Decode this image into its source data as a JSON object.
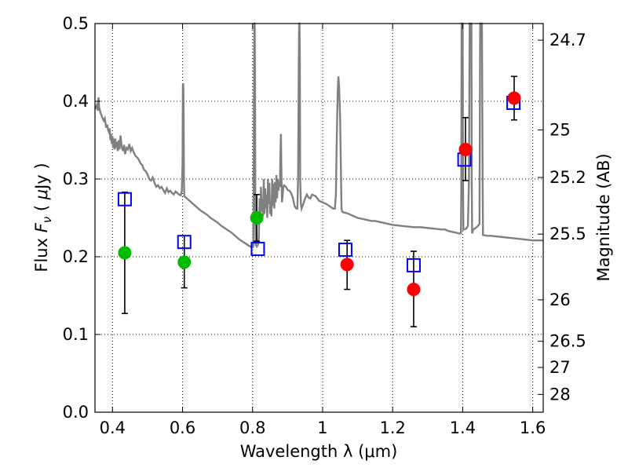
{
  "chart_data": {
    "type": "scatter",
    "xlabel": "Wavelength  λ (μm)",
    "ylabel": "Flux  F_ν  ( μJy )",
    "ylabel_parts": {
      "pre": "Flux  ",
      "sym": "F",
      "sub": "ν",
      "post": "  ( ",
      "mu": "μ",
      "unit": "Jy )"
    },
    "y2label": "Magnitude (AB)",
    "xlim": [
      0.35,
      1.63
    ],
    "ylim": [
      0.0,
      0.5
    ],
    "grid": true,
    "x_ticks": [
      {
        "value": 0.4,
        "label": "0.4"
      },
      {
        "value": 0.6,
        "label": "0.6"
      },
      {
        "value": 0.8,
        "label": "0.8"
      },
      {
        "value": 1.0,
        "label": "1"
      },
      {
        "value": 1.2,
        "label": "1.2"
      },
      {
        "value": 1.4,
        "label": "1.4"
      },
      {
        "value": 1.6,
        "label": "1.6"
      }
    ],
    "y_ticks": [
      {
        "value": 0.0,
        "label": "0.0"
      },
      {
        "value": 0.1,
        "label": "0.1"
      },
      {
        "value": 0.2,
        "label": "0.2"
      },
      {
        "value": 0.3,
        "label": "0.3"
      },
      {
        "value": 0.4,
        "label": "0.4"
      },
      {
        "value": 0.5,
        "label": "0.5"
      }
    ],
    "y2_ticks": [
      {
        "value": 24.7,
        "label": "24.7"
      },
      {
        "value": 25.0,
        "label": "25"
      },
      {
        "value": 25.2,
        "label": "25.2"
      },
      {
        "value": 25.5,
        "label": "25.5"
      },
      {
        "value": 26.0,
        "label": "26"
      },
      {
        "value": 26.5,
        "label": "26.5"
      },
      {
        "value": 27.0,
        "label": "27"
      },
      {
        "value": 28.0,
        "label": "28"
      }
    ],
    "model_spectrum": {
      "color": "#808080",
      "points": [
        [
          0.35,
          0.39
        ],
        [
          0.355,
          0.395
        ],
        [
          0.358,
          0.388
        ],
        [
          0.36,
          0.405
        ],
        [
          0.362,
          0.392
        ],
        [
          0.366,
          0.385
        ],
        [
          0.37,
          0.38
        ],
        [
          0.375,
          0.375
        ],
        [
          0.378,
          0.378
        ],
        [
          0.382,
          0.366
        ],
        [
          0.385,
          0.37
        ],
        [
          0.388,
          0.362
        ],
        [
          0.39,
          0.36
        ],
        [
          0.392,
          0.365
        ],
        [
          0.394,
          0.35
        ],
        [
          0.396,
          0.358
        ],
        [
          0.398,
          0.345
        ],
        [
          0.4,
          0.355
        ],
        [
          0.402,
          0.34
        ],
        [
          0.404,
          0.352
        ],
        [
          0.406,
          0.338
        ],
        [
          0.408,
          0.352
        ],
        [
          0.41,
          0.34
        ],
        [
          0.412,
          0.348
        ],
        [
          0.415,
          0.336
        ],
        [
          0.418,
          0.35
        ],
        [
          0.42,
          0.338
        ],
        [
          0.423,
          0.356
        ],
        [
          0.426,
          0.342
        ],
        [
          0.43,
          0.336
        ],
        [
          0.433,
          0.344
        ],
        [
          0.436,
          0.332
        ],
        [
          0.44,
          0.34
        ],
        [
          0.444,
          0.338
        ],
        [
          0.448,
          0.345
        ],
        [
          0.452,
          0.336
        ],
        [
          0.456,
          0.34
        ],
        [
          0.46,
          0.335
        ],
        [
          0.465,
          0.33
        ],
        [
          0.47,
          0.328
        ],
        [
          0.475,
          0.325
        ],
        [
          0.48,
          0.32
        ],
        [
          0.485,
          0.318
        ],
        [
          0.49,
          0.312
        ],
        [
          0.495,
          0.31
        ],
        [
          0.5,
          0.306
        ],
        [
          0.505,
          0.3
        ],
        [
          0.51,
          0.298
        ],
        [
          0.515,
          0.302
        ],
        [
          0.52,
          0.295
        ],
        [
          0.525,
          0.29
        ],
        [
          0.53,
          0.292
        ],
        [
          0.535,
          0.288
        ],
        [
          0.54,
          0.29
        ],
        [
          0.545,
          0.286
        ],
        [
          0.55,
          0.282
        ],
        [
          0.555,
          0.288
        ],
        [
          0.56,
          0.283
        ],
        [
          0.565,
          0.285
        ],
        [
          0.57,
          0.282
        ],
        [
          0.575,
          0.28
        ],
        [
          0.58,
          0.284
        ],
        [
          0.585,
          0.282
        ],
        [
          0.59,
          0.28
        ],
        [
          0.595,
          0.279
        ],
        [
          0.598,
          0.285
        ],
        [
          0.6,
          0.32
        ],
        [
          0.601,
          0.42
        ],
        [
          0.602,
          0.423
        ],
        [
          0.603,
          0.4
        ],
        [
          0.604,
          0.3
        ],
        [
          0.605,
          0.278
        ],
        [
          0.61,
          0.276
        ],
        [
          0.62,
          0.272
        ],
        [
          0.63,
          0.268
        ],
        [
          0.64,
          0.264
        ],
        [
          0.65,
          0.26
        ],
        [
          0.66,
          0.257
        ],
        [
          0.67,
          0.254
        ],
        [
          0.68,
          0.25
        ],
        [
          0.69,
          0.247
        ],
        [
          0.7,
          0.244
        ],
        [
          0.71,
          0.24
        ],
        [
          0.72,
          0.237
        ],
        [
          0.73,
          0.234
        ],
        [
          0.74,
          0.231
        ],
        [
          0.75,
          0.227
        ],
        [
          0.76,
          0.223
        ],
        [
          0.77,
          0.22
        ],
        [
          0.78,
          0.217
        ],
        [
          0.79,
          0.214
        ],
        [
          0.8,
          0.212
        ],
        [
          0.802,
          0.213
        ],
        [
          0.803,
          0.26
        ],
        [
          0.804,
          0.4
        ],
        [
          0.805,
          0.5
        ],
        [
          0.806,
          0.5
        ],
        [
          0.807,
          0.42
        ],
        [
          0.808,
          0.26
        ],
        [
          0.809,
          0.215
        ],
        [
          0.812,
          0.213
        ],
        [
          0.815,
          0.215
        ],
        [
          0.818,
          0.225
        ],
        [
          0.82,
          0.275
        ],
        [
          0.822,
          0.25
        ],
        [
          0.824,
          0.29
        ],
        [
          0.826,
          0.258
        ],
        [
          0.828,
          0.275
        ],
        [
          0.83,
          0.252
        ],
        [
          0.832,
          0.3
        ],
        [
          0.834,
          0.255
        ],
        [
          0.836,
          0.288
        ],
        [
          0.838,
          0.262
        ],
        [
          0.84,
          0.28
        ],
        [
          0.842,
          0.25
        ],
        [
          0.844,
          0.3
        ],
        [
          0.846,
          0.268
        ],
        [
          0.848,
          0.295
        ],
        [
          0.85,
          0.255
        ],
        [
          0.852,
          0.268
        ],
        [
          0.854,
          0.252
        ],
        [
          0.856,
          0.3
        ],
        [
          0.858,
          0.265
        ],
        [
          0.86,
          0.294
        ],
        [
          0.862,
          0.262
        ],
        [
          0.864,
          0.296
        ],
        [
          0.866,
          0.27
        ],
        [
          0.868,
          0.305
        ],
        [
          0.87,
          0.275
        ],
        [
          0.872,
          0.3
        ],
        [
          0.874,
          0.285
        ],
        [
          0.876,
          0.292
        ],
        [
          0.878,
          0.29
        ],
        [
          0.88,
          0.34
        ],
        [
          0.881,
          0.358
        ],
        [
          0.882,
          0.32
        ],
        [
          0.884,
          0.27
        ],
        [
          0.886,
          0.28
        ],
        [
          0.888,
          0.29
        ],
        [
          0.89,
          0.292
        ],
        [
          0.895,
          0.29
        ],
        [
          0.9,
          0.286
        ],
        [
          0.905,
          0.285
        ],
        [
          0.91,
          0.282
        ],
        [
          0.915,
          0.276
        ],
        [
          0.92,
          0.265
        ],
        [
          0.925,
          0.262
        ],
        [
          0.928,
          0.262
        ],
        [
          0.93,
          0.3
        ],
        [
          0.932,
          0.45
        ],
        [
          0.933,
          0.5
        ],
        [
          0.934,
          0.5
        ],
        [
          0.935,
          0.46
        ],
        [
          0.936,
          0.3
        ],
        [
          0.938,
          0.268
        ],
        [
          0.94,
          0.262
        ],
        [
          0.945,
          0.268
        ],
        [
          0.95,
          0.275
        ],
        [
          0.955,
          0.28
        ],
        [
          0.96,
          0.276
        ],
        [
          0.965,
          0.275
        ],
        [
          0.97,
          0.28
        ],
        [
          0.975,
          0.279
        ],
        [
          0.98,
          0.278
        ],
        [
          0.985,
          0.275
        ],
        [
          0.99,
          0.272
        ],
        [
          1.0,
          0.27
        ],
        [
          1.01,
          0.268
        ],
        [
          1.02,
          0.265
        ],
        [
          1.03,
          0.262
        ],
        [
          1.035,
          0.262
        ],
        [
          1.038,
          0.28
        ],
        [
          1.04,
          0.34
        ],
        [
          1.043,
          0.41
        ],
        [
          1.045,
          0.432
        ],
        [
          1.047,
          0.42
        ],
        [
          1.05,
          0.38
        ],
        [
          1.052,
          0.32
        ],
        [
          1.054,
          0.262
        ],
        [
          1.056,
          0.258
        ],
        [
          1.06,
          0.257
        ],
        [
          1.07,
          0.256
        ],
        [
          1.08,
          0.254
        ],
        [
          1.09,
          0.252
        ],
        [
          1.1,
          0.25
        ],
        [
          1.11,
          0.249
        ],
        [
          1.12,
          0.248
        ],
        [
          1.13,
          0.247
        ],
        [
          1.14,
          0.246
        ],
        [
          1.15,
          0.246
        ],
        [
          1.16,
          0.245
        ],
        [
          1.17,
          0.244
        ],
        [
          1.18,
          0.243
        ],
        [
          1.19,
          0.242
        ],
        [
          1.2,
          0.241
        ],
        [
          1.22,
          0.24
        ],
        [
          1.24,
          0.239
        ],
        [
          1.26,
          0.238
        ],
        [
          1.28,
          0.238
        ],
        [
          1.3,
          0.237
        ],
        [
          1.32,
          0.236
        ],
        [
          1.34,
          0.235
        ],
        [
          1.35,
          0.235
        ],
        [
          1.36,
          0.233
        ],
        [
          1.37,
          0.232
        ],
        [
          1.38,
          0.231
        ],
        [
          1.39,
          0.23
        ],
        [
          1.395,
          0.23
        ],
        [
          1.396,
          0.28
        ],
        [
          1.397,
          0.5
        ],
        [
          1.4,
          0.5
        ],
        [
          1.401,
          0.3
        ],
        [
          1.402,
          0.235
        ],
        [
          1.41,
          0.236
        ],
        [
          1.415,
          0.24
        ],
        [
          1.418,
          0.3
        ],
        [
          1.42,
          0.5
        ],
        [
          1.425,
          0.5
        ],
        [
          1.426,
          0.29
        ],
        [
          1.427,
          0.23
        ],
        [
          1.43,
          0.235
        ],
        [
          1.44,
          0.238
        ],
        [
          1.448,
          0.242
        ],
        [
          1.45,
          0.5
        ],
        [
          1.455,
          0.5
        ],
        [
          1.457,
          0.3
        ],
        [
          1.458,
          0.228
        ],
        [
          1.47,
          0.227
        ],
        [
          1.48,
          0.227
        ],
        [
          1.5,
          0.226
        ],
        [
          1.52,
          0.225
        ],
        [
          1.54,
          0.224
        ],
        [
          1.56,
          0.223
        ],
        [
          1.58,
          0.222
        ],
        [
          1.6,
          0.221
        ],
        [
          1.62,
          0.221
        ],
        [
          1.63,
          0.221
        ]
      ]
    },
    "series": [
      {
        "marker": "square",
        "color": "#0000ff",
        "points": [
          {
            "x": 0.435,
            "y": 0.274
          },
          {
            "x": 0.605,
            "y": 0.219
          },
          {
            "x": 0.815,
            "y": 0.21
          },
          {
            "x": 1.065,
            "y": 0.209
          },
          {
            "x": 1.26,
            "y": 0.189
          },
          {
            "x": 1.405,
            "y": 0.325
          },
          {
            "x": 1.545,
            "y": 0.398
          }
        ]
      },
      {
        "marker": "circle",
        "color": "#00bb00",
        "points": [
          {
            "x": 0.435,
            "y": 0.205,
            "err_low": 0.127,
            "err_high": 0.283
          },
          {
            "x": 0.605,
            "y": 0.193,
            "err_low": 0.16,
            "err_high": 0.227
          },
          {
            "x": 0.812,
            "y": 0.25,
            "err_low": 0.22,
            "err_high": 0.28
          }
        ]
      },
      {
        "marker": "circle",
        "color": "#ff0000",
        "points": [
          {
            "x": 1.07,
            "y": 0.19,
            "err_low": 0.158,
            "err_high": 0.221
          },
          {
            "x": 1.26,
            "y": 0.158,
            "err_low": 0.11,
            "err_high": 0.207
          },
          {
            "x": 1.408,
            "y": 0.338,
            "err_low": 0.298,
            "err_high": 0.379
          },
          {
            "x": 1.547,
            "y": 0.404,
            "err_low": 0.376,
            "err_high": 0.432
          }
        ]
      }
    ]
  }
}
